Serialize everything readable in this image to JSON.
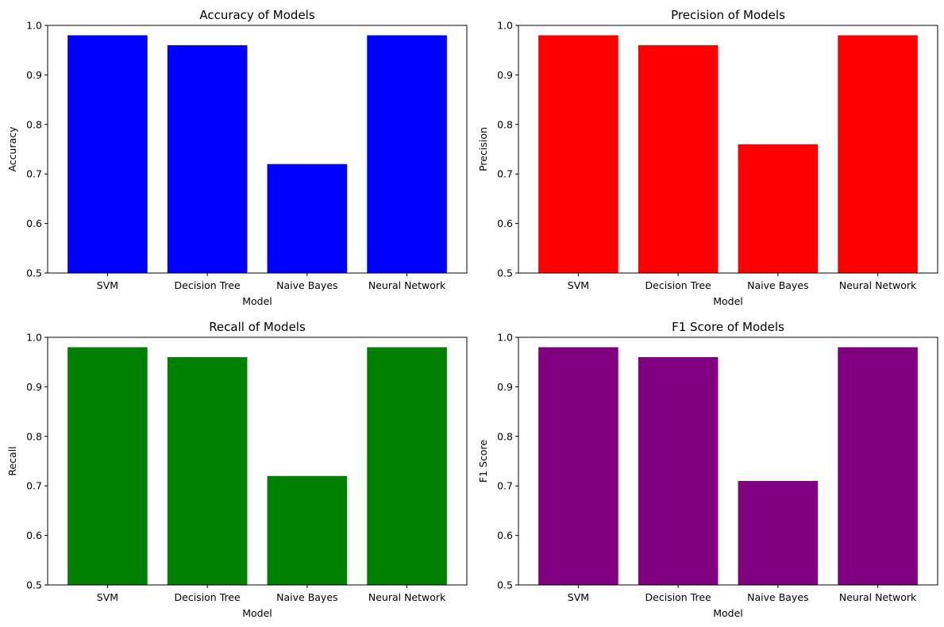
{
  "chart_data": [
    {
      "type": "bar",
      "title": "Accuracy of Models",
      "xlabel": "Model",
      "ylabel": "Accuracy",
      "categories": [
        "SVM",
        "Decision Tree",
        "Naive Bayes",
        "Neural Network"
      ],
      "values": [
        0.98,
        0.96,
        0.72,
        0.98
      ],
      "ylim": [
        0.5,
        1.0
      ],
      "yticks": [
        "0.5",
        "0.6",
        "0.7",
        "0.8",
        "0.9",
        "1.0"
      ],
      "color": "#0000ff",
      "grid": false
    },
    {
      "type": "bar",
      "title": "Precision of Models",
      "xlabel": "Model",
      "ylabel": "Precision",
      "categories": [
        "SVM",
        "Decision Tree",
        "Naive Bayes",
        "Neural Network"
      ],
      "values": [
        0.98,
        0.96,
        0.76,
        0.98
      ],
      "ylim": [
        0.5,
        1.0
      ],
      "yticks": [
        "0.5",
        "0.6",
        "0.7",
        "0.8",
        "0.9",
        "1.0"
      ],
      "color": "#ff0000",
      "grid": false
    },
    {
      "type": "bar",
      "title": "Recall of Models",
      "xlabel": "Model",
      "ylabel": "Recall",
      "categories": [
        "SVM",
        "Decision Tree",
        "Naive Bayes",
        "Neural Network"
      ],
      "values": [
        0.98,
        0.96,
        0.72,
        0.98
      ],
      "ylim": [
        0.5,
        1.0
      ],
      "yticks": [
        "0.5",
        "0.6",
        "0.7",
        "0.8",
        "0.9",
        "1.0"
      ],
      "color": "#008000",
      "grid": false
    },
    {
      "type": "bar",
      "title": "F1 Score of Models",
      "xlabel": "Model",
      "ylabel": "F1 Score",
      "categories": [
        "SVM",
        "Decision Tree",
        "Naive Bayes",
        "Neural Network"
      ],
      "values": [
        0.98,
        0.96,
        0.71,
        0.98
      ],
      "ylim": [
        0.5,
        1.0
      ],
      "yticks": [
        "0.5",
        "0.6",
        "0.7",
        "0.8",
        "0.9",
        "1.0"
      ],
      "color": "#800080",
      "grid": false
    }
  ]
}
